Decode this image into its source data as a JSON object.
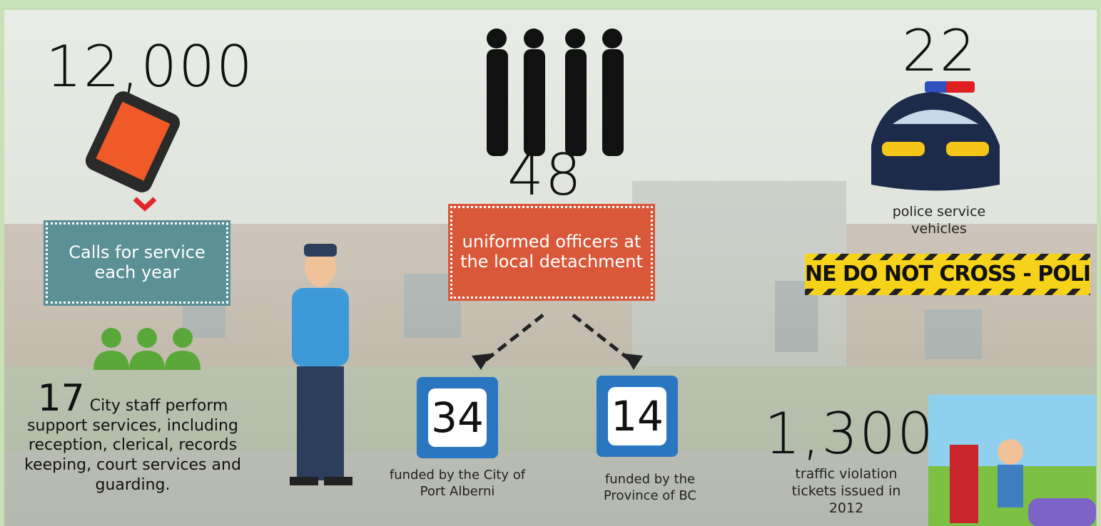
{
  "calls": {
    "number": "12,000",
    "label": "Calls for service each year"
  },
  "officers": {
    "number": "48",
    "label": "uniformed officers at the local detachment"
  },
  "city_funded": {
    "number": "34",
    "label": "funded by the City of Port Alberni"
  },
  "province_funded": {
    "number": "14",
    "label": "funded by the Province of BC"
  },
  "vehicles": {
    "number": "22",
    "label": "police service vehicles"
  },
  "tape": "NE DO NOT CROSS - POLICE LINE DO NO",
  "staff": {
    "number": "17",
    "label": "City staff perform support services, including reception, clerical, records keeping, court services and guarding."
  },
  "tickets": {
    "number": "1,300",
    "label": "traffic violation tickets issued in 2012"
  }
}
